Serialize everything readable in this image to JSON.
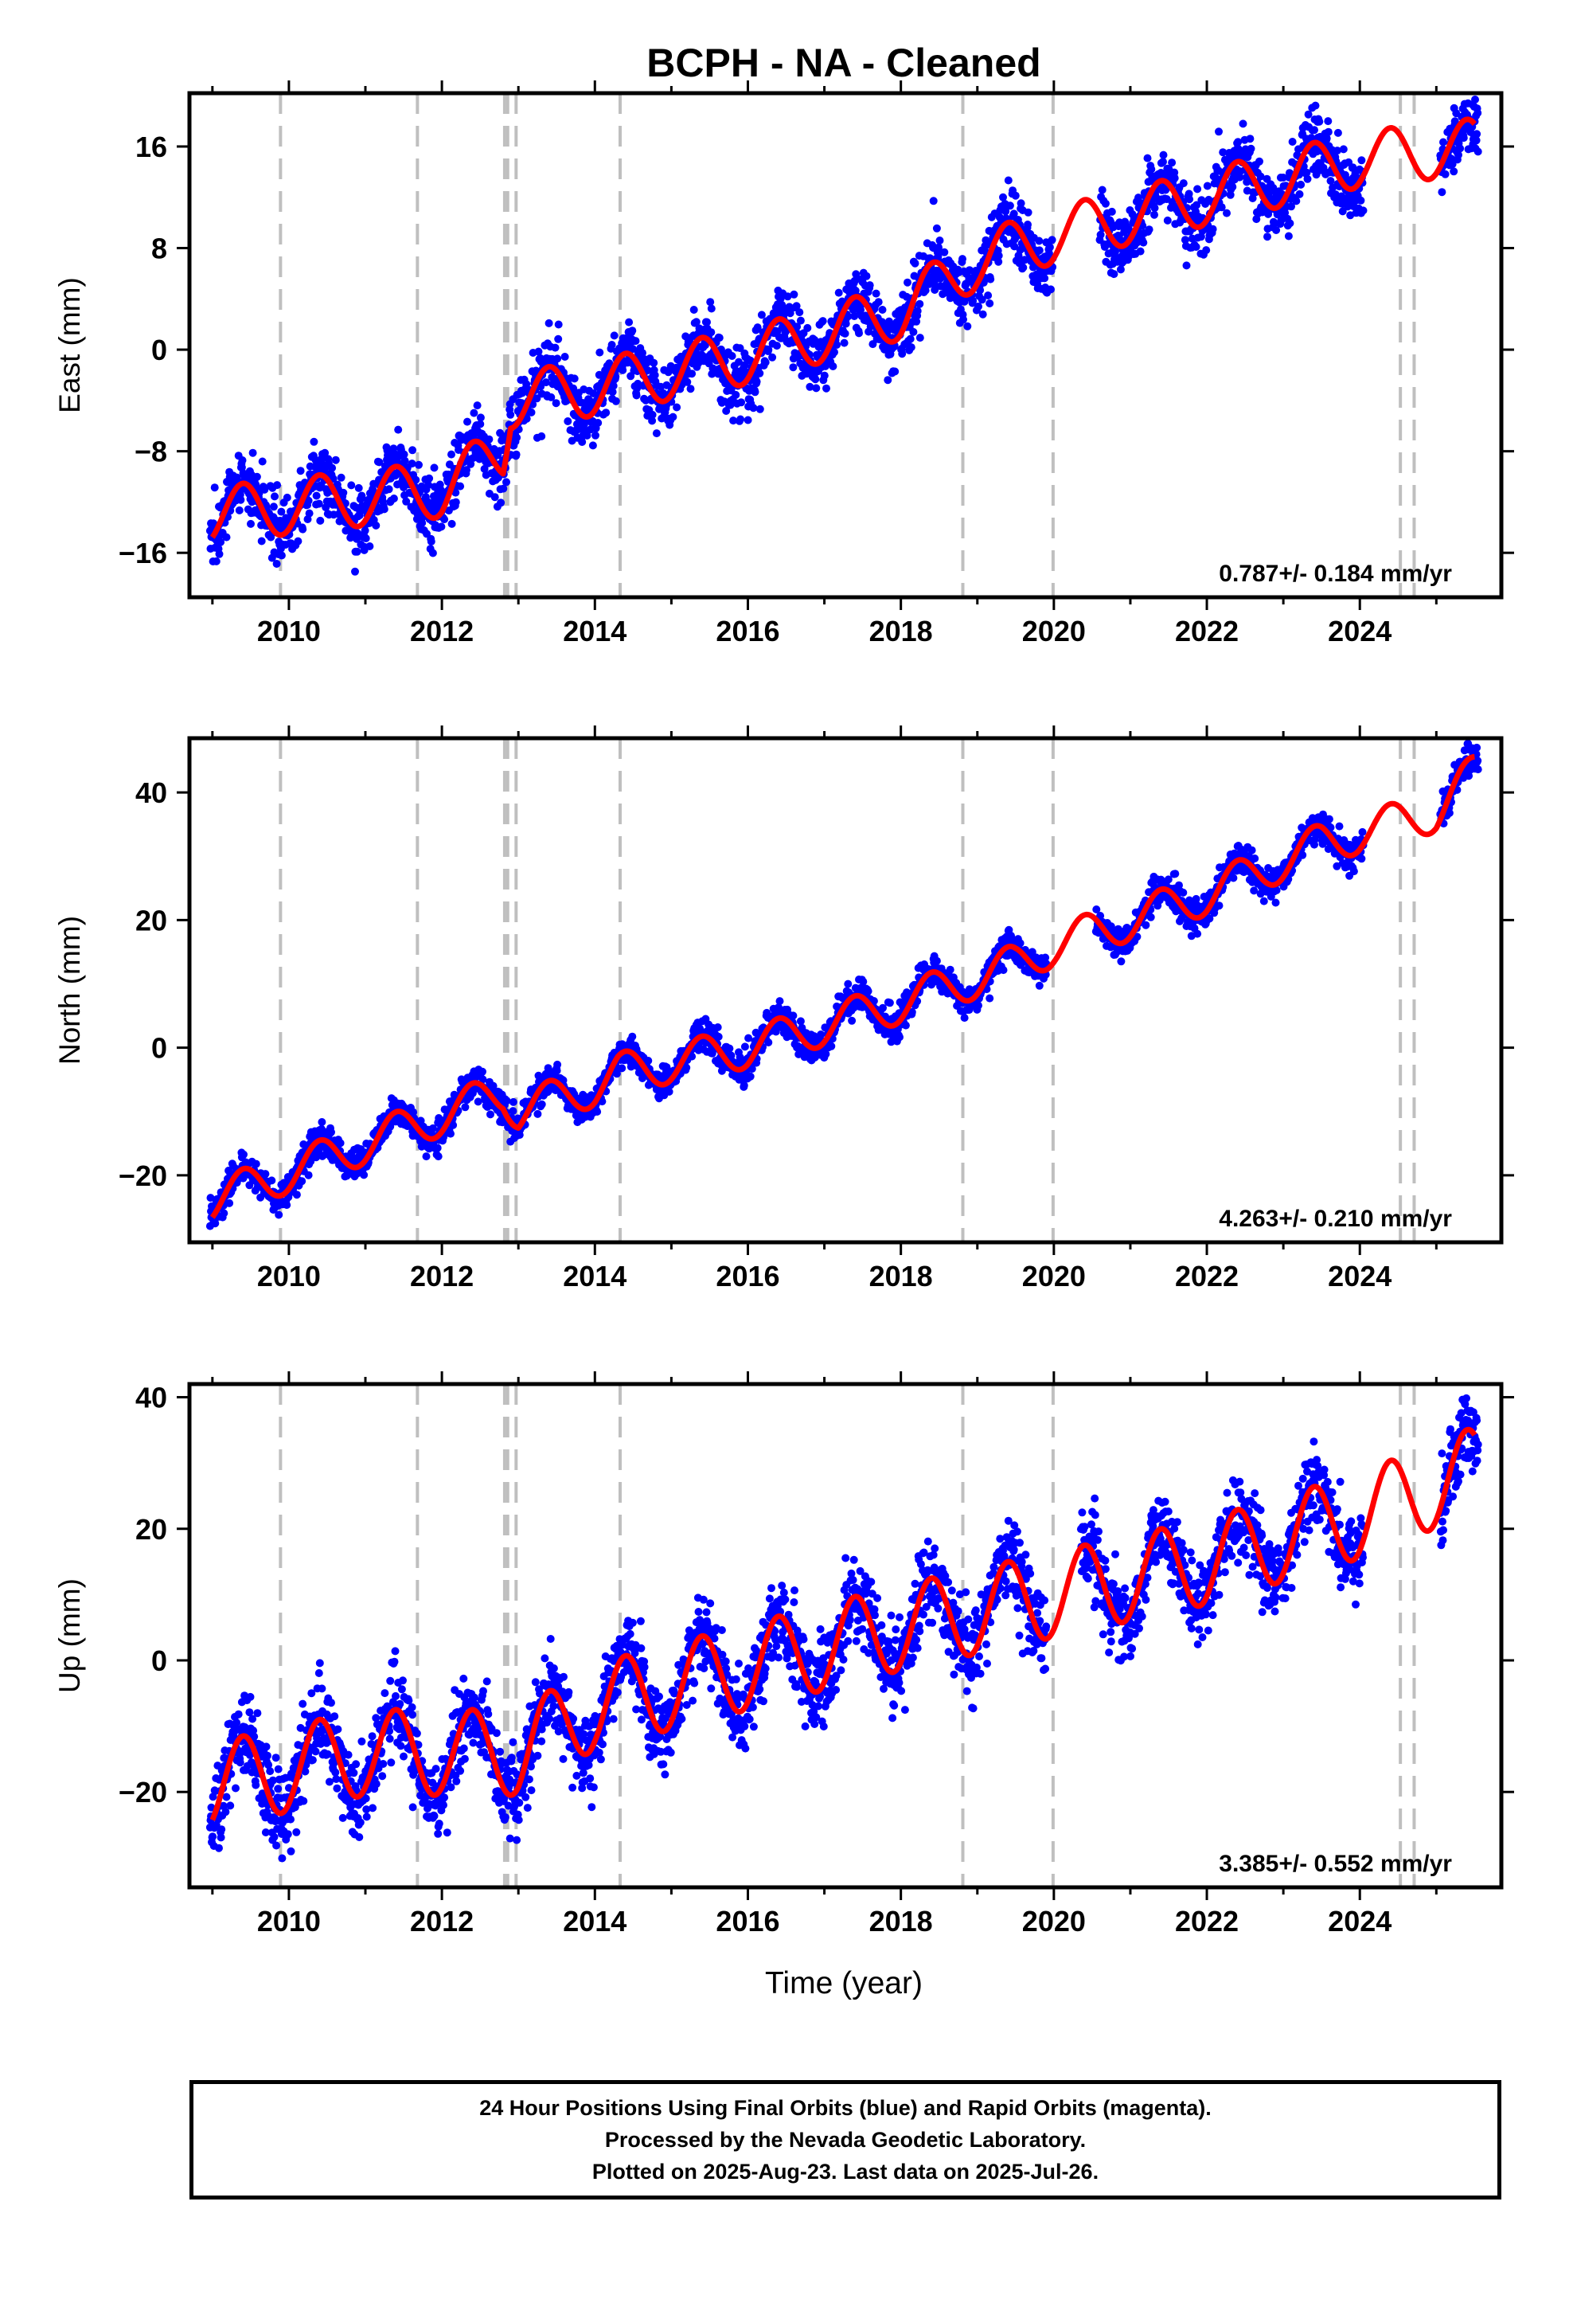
{
  "title": "BCPH  - NA - Cleaned",
  "xlabel": "Time (year)",
  "footer": {
    "line1": "24 Hour Positions Using Final Orbits (blue) and Rapid Orbits (magenta).",
    "line2": "Processed by the Nevada Geodetic Laboratory.",
    "line3": "Plotted on 2025-Aug-23. Last data on 2025-Jul-26."
  },
  "colors": {
    "final_points": "#0000ff",
    "model": "#ff0000",
    "event_lines": "#bfbfbf"
  },
  "chart_data": [
    {
      "type": "scatter",
      "ylabel": "East (mm)",
      "xlim": [
        2008.7,
        2025.85
      ],
      "ylim": [
        -19.5,
        20.2
      ],
      "yticks": [
        -16,
        -8,
        0,
        8,
        16
      ],
      "xticks": [
        2010,
        2012,
        2014,
        2016,
        2018,
        2020,
        2022,
        2024
      ],
      "event_lines": [
        2009.89,
        2011.68,
        2012.82,
        2012.86,
        2012.97,
        2014.33,
        2018.81,
        2019.99,
        2024.53,
        2024.71
      ],
      "velocity_label": "0.787+/- 0.184 mm/yr",
      "series": [
        {
          "role": "final-orbit positions (blue)",
          "x_range": [
            2008.97,
            2025.55
          ],
          "trend": [
            [
              2009.0,
              -13.0
            ],
            [
              2012.0,
              -11.0
            ],
            [
              2012.8,
              -8.0
            ],
            [
              2012.9,
              -4.0
            ],
            [
              2014.0,
              -3.0
            ],
            [
              2016.0,
              -0.5
            ],
            [
              2018.0,
              3.0
            ],
            [
              2019.0,
              7.0
            ],
            [
              2020.0,
              9.0
            ],
            [
              2022.0,
              12.0
            ],
            [
              2024.0,
              15.0
            ],
            [
              2025.5,
              16.0
            ]
          ],
          "seasonal_amplitude": 2.2,
          "scatter_sd": 1.3,
          "gaps": [
            [
              2019.99,
              2020.6
            ],
            [
              2024.05,
              2025.05
            ]
          ]
        },
        {
          "role": "model fit (red)",
          "x_range": [
            2009.0,
            2025.5
          ],
          "trend": [
            [
              2009.0,
              -13.0
            ],
            [
              2012.0,
              -11.0
            ],
            [
              2012.8,
              -8.0
            ],
            [
              2012.9,
              -4.0
            ],
            [
              2014.0,
              -3.0
            ],
            [
              2016.0,
              -0.5
            ],
            [
              2018.0,
              3.0
            ],
            [
              2019.0,
              7.0
            ],
            [
              2020.0,
              9.0
            ],
            [
              2022.0,
              12.0
            ],
            [
              2024.0,
              15.0
            ],
            [
              2025.5,
              16.0
            ]
          ],
          "seasonal_amplitude": 2.2
        }
      ]
    },
    {
      "type": "scatter",
      "ylabel": "North (mm)",
      "xlim": [
        2008.7,
        2025.85
      ],
      "ylim": [
        -30.5,
        48.5
      ],
      "yticks": [
        -20,
        0,
        20,
        40
      ],
      "xticks": [
        2010,
        2012,
        2014,
        2016,
        2018,
        2020,
        2022,
        2024
      ],
      "event_lines": [
        2009.89,
        2011.68,
        2012.82,
        2012.86,
        2012.97,
        2014.33,
        2018.81,
        2019.99,
        2024.53,
        2024.71
      ],
      "velocity_label": "4.263+/- 0.210 mm/yr",
      "series": [
        {
          "role": "final-orbit positions (blue)",
          "x_range": [
            2008.97,
            2025.55
          ],
          "trend": [
            [
              2009.0,
              -24.0
            ],
            [
              2012.8,
              -7.0
            ],
            [
              2013.0,
              -10.0
            ],
            [
              2014.0,
              -6.0
            ],
            [
              2014.3,
              -4.0
            ],
            [
              2016.0,
              0.0
            ],
            [
              2018.0,
              7.0
            ],
            [
              2019.5,
              13.0
            ],
            [
              2020.0,
              16.0
            ],
            [
              2022.0,
              24.0
            ],
            [
              2023.5,
              32.0
            ],
            [
              2025.0,
              37.0
            ],
            [
              2025.5,
              43.0
            ]
          ],
          "seasonal_amplitude": 3.2,
          "scatter_sd": 1.2,
          "gaps": [
            [
              2019.9,
              2020.55
            ],
            [
              2024.05,
              2025.05
            ]
          ]
        },
        {
          "role": "model fit (red)",
          "x_range": [
            2009.0,
            2025.5
          ],
          "trend": [
            [
              2009.0,
              -24.0
            ],
            [
              2012.8,
              -7.0
            ],
            [
              2013.0,
              -10.0
            ],
            [
              2014.0,
              -6.0
            ],
            [
              2014.3,
              -4.0
            ],
            [
              2016.0,
              0.0
            ],
            [
              2018.0,
              7.0
            ],
            [
              2019.5,
              13.0
            ],
            [
              2020.0,
              16.0
            ],
            [
              2022.0,
              24.0
            ],
            [
              2023.5,
              32.0
            ],
            [
              2025.0,
              37.0
            ],
            [
              2025.5,
              43.0
            ]
          ],
          "seasonal_amplitude": 3.2
        }
      ]
    },
    {
      "type": "scatter",
      "ylabel": "Up (mm)",
      "xlim": [
        2008.7,
        2025.85
      ],
      "ylim": [
        -34.5,
        42.0
      ],
      "yticks": [
        -20,
        0,
        20,
        40
      ],
      "xticks": [
        2010,
        2012,
        2014,
        2016,
        2018,
        2020,
        2022,
        2024
      ],
      "event_lines": [
        2009.89,
        2011.68,
        2012.82,
        2012.86,
        2012.97,
        2014.33,
        2018.81,
        2019.99,
        2024.53,
        2024.71
      ],
      "velocity_label": "3.385+/- 0.552 mm/yr",
      "series": [
        {
          "role": "final-orbit positions (blue)",
          "x_range": [
            2008.97,
            2025.55
          ],
          "trend": [
            [
              2009.0,
              -19.0
            ],
            [
              2011.0,
              -14.0
            ],
            [
              2013.0,
              -14.0
            ],
            [
              2014.0,
              -7.0
            ],
            [
              2016.0,
              -1.0
            ],
            [
              2018.0,
              5.0
            ],
            [
              2020.0,
              10.0
            ],
            [
              2022.0,
              15.0
            ],
            [
              2024.0,
              22.0
            ],
            [
              2025.5,
              29.0
            ]
          ],
          "seasonal_amplitude": 6.5,
          "scatter_sd": 3.2,
          "gaps": [
            [
              2019.9,
              2020.35
            ],
            [
              2024.05,
              2025.05
            ]
          ]
        },
        {
          "role": "model fit (red)",
          "x_range": [
            2009.0,
            2025.5
          ],
          "trend": [
            [
              2009.0,
              -19.0
            ],
            [
              2011.0,
              -14.0
            ],
            [
              2013.0,
              -14.0
            ],
            [
              2014.0,
              -7.0
            ],
            [
              2016.0,
              -1.0
            ],
            [
              2018.0,
              5.0
            ],
            [
              2020.0,
              10.0
            ],
            [
              2022.0,
              15.0
            ],
            [
              2024.0,
              22.0
            ],
            [
              2025.5,
              29.0
            ]
          ],
          "seasonal_amplitude": 6.5
        }
      ]
    }
  ]
}
